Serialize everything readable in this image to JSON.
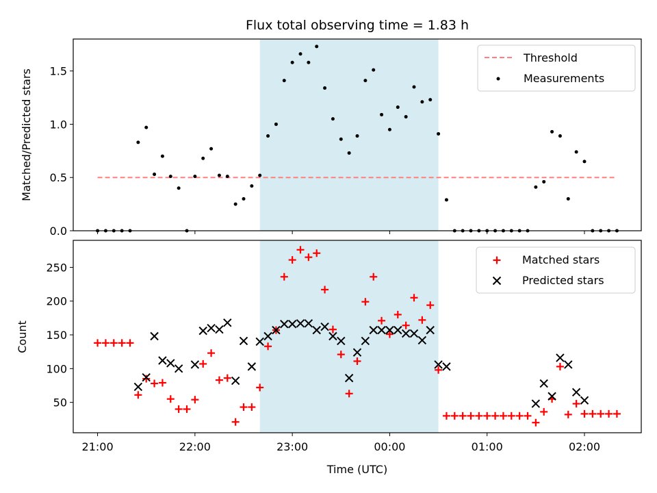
{
  "chart_data": [
    {
      "type": "scatter",
      "title": "Flux total observing time = 1.83 h",
      "xlabel": "",
      "ylabel": "Matched/Predicted stars",
      "xlim": [
        "20:45",
        "02:35"
      ],
      "ylim": [
        0,
        1.8
      ],
      "y_ticks": [
        "0.0",
        "0.5",
        "1.0",
        "1.5"
      ],
      "highlight_span": [
        "22:40",
        "00:30"
      ],
      "legend_position": "top-right",
      "threshold": {
        "name": "Threshold",
        "value": 0.5,
        "x_range": [
          "21:00",
          "02:20"
        ],
        "color": "#ff7f7f"
      },
      "series": [
        {
          "name": "Measurements",
          "color": "#000000",
          "x": [
            "21:00",
            "21:05",
            "21:10",
            "21:15",
            "21:20",
            "21:25",
            "21:30",
            "21:35",
            "21:40",
            "21:45",
            "21:50",
            "21:55",
            "22:00",
            "22:05",
            "22:10",
            "22:15",
            "22:20",
            "22:25",
            "22:30",
            "22:35",
            "22:40",
            "22:45",
            "22:50",
            "22:55",
            "23:00",
            "23:05",
            "23:10",
            "23:15",
            "23:20",
            "23:25",
            "23:30",
            "23:35",
            "23:40",
            "23:45",
            "23:50",
            "23:55",
            "00:00",
            "00:05",
            "00:10",
            "00:15",
            "00:20",
            "00:25",
            "00:30",
            "00:35",
            "00:40",
            "00:45",
            "00:50",
            "00:55",
            "01:00",
            "01:05",
            "01:10",
            "01:15",
            "01:20",
            "01:25",
            "01:30",
            "01:35",
            "01:40",
            "01:45",
            "01:50",
            "01:55",
            "02:00",
            "02:05",
            "02:10",
            "02:15",
            "02:20"
          ],
          "y": [
            0,
            0,
            0,
            0,
            0,
            0.83,
            0.97,
            0.53,
            0.7,
            0.51,
            0.4,
            0,
            0.51,
            0.68,
            0.77,
            0.52,
            0.51,
            0.25,
            0.3,
            0.42,
            0.52,
            0.89,
            1.0,
            1.41,
            1.58,
            1.66,
            1.58,
            1.73,
            1.34,
            1.05,
            0.86,
            0.73,
            0.89,
            1.41,
            1.51,
            1.09,
            0.95,
            1.16,
            1.07,
            1.35,
            1.21,
            1.23,
            0.91,
            0.29,
            0,
            0,
            0,
            0,
            0,
            0,
            0,
            0,
            0,
            0,
            0.41,
            0.46,
            0.93,
            0.89,
            0.3,
            0.74,
            0.65,
            0,
            0,
            0,
            0
          ]
        }
      ]
    },
    {
      "type": "scatter",
      "title": "",
      "xlabel": "Time (UTC)",
      "ylabel": "Count",
      "xlim": [
        "20:45",
        "02:35"
      ],
      "ylim": [
        5,
        290
      ],
      "y_ticks": [
        "50",
        "100",
        "150",
        "200",
        "250"
      ],
      "x_ticks": [
        "21:00",
        "22:00",
        "23:00",
        "00:00",
        "01:00",
        "02:00"
      ],
      "highlight_span": [
        "22:40",
        "00:30"
      ],
      "legend_position": "top-right",
      "series": [
        {
          "name": "Matched stars",
          "marker": "plus",
          "color": "#ff0000",
          "x": [
            "21:00",
            "21:05",
            "21:10",
            "21:15",
            "21:20",
            "21:25",
            "21:30",
            "21:35",
            "21:40",
            "21:45",
            "21:50",
            "21:55",
            "22:00",
            "22:05",
            "22:10",
            "22:15",
            "22:20",
            "22:25",
            "22:30",
            "22:35",
            "22:40",
            "22:45",
            "22:50",
            "22:55",
            "23:00",
            "23:05",
            "23:10",
            "23:15",
            "23:20",
            "23:25",
            "23:30",
            "23:35",
            "23:40",
            "23:45",
            "23:50",
            "23:55",
            "00:00",
            "00:05",
            "00:10",
            "00:15",
            "00:20",
            "00:25",
            "00:30",
            "00:35",
            "00:40",
            "00:45",
            "00:50",
            "00:55",
            "01:00",
            "01:05",
            "01:10",
            "01:15",
            "01:20",
            "01:25",
            "01:30",
            "01:35",
            "01:40",
            "01:45",
            "01:50",
            "01:55",
            "02:00",
            "02:05",
            "02:10",
            "02:15",
            "02:20"
          ],
          "y": [
            138,
            138,
            138,
            138,
            138,
            61,
            85,
            78,
            79,
            55,
            40,
            40,
            54,
            107,
            123,
            83,
            86,
            21,
            43,
            43,
            72,
            133,
            157,
            236,
            261,
            276,
            265,
            271,
            217,
            158,
            121,
            63,
            111,
            199,
            236,
            171,
            151,
            180,
            164,
            205,
            172,
            194,
            98,
            30,
            30,
            30,
            30,
            30,
            30,
            30,
            30,
            30,
            30,
            30,
            20,
            36,
            55,
            103,
            32,
            48,
            33,
            33,
            33,
            33,
            33
          ]
        },
        {
          "name": "Predicted stars",
          "marker": "x",
          "color": "#000000",
          "x": [
            "21:25",
            "21:30",
            "21:35",
            "21:40",
            "21:45",
            "21:50",
            "22:00",
            "22:05",
            "22:10",
            "22:15",
            "22:20",
            "22:25",
            "22:30",
            "22:35",
            "22:40",
            "22:45",
            "22:50",
            "22:55",
            "23:00",
            "23:05",
            "23:10",
            "23:15",
            "23:20",
            "23:25",
            "23:30",
            "23:35",
            "23:40",
            "23:45",
            "23:50",
            "23:55",
            "00:00",
            "00:05",
            "00:10",
            "00:15",
            "00:20",
            "00:25",
            "00:30",
            "00:35",
            "01:30",
            "01:35",
            "01:40",
            "01:45",
            "01:50",
            "01:55",
            "02:00"
          ],
          "y": [
            73,
            87,
            148,
            112,
            108,
            100,
            106,
            156,
            160,
            158,
            168,
            82,
            141,
            103,
            140,
            148,
            157,
            166,
            166,
            167,
            167,
            157,
            162,
            148,
            141,
            86,
            124,
            141,
            157,
            157,
            157,
            157,
            152,
            152,
            142,
            157,
            106,
            103,
            48,
            78,
            59,
            116,
            106,
            65,
            53
          ]
        }
      ]
    }
  ]
}
